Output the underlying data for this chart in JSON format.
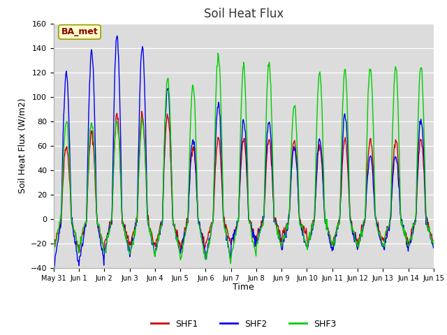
{
  "title": "Soil Heat Flux",
  "ylabel": "Soil Heat Flux (W/m2)",
  "xlabel": "Time",
  "ylim": [
    -40,
    160
  ],
  "yticks": [
    -40,
    -20,
    0,
    20,
    40,
    60,
    80,
    100,
    120,
    140,
    160
  ],
  "colors": {
    "SHF1": "#cc0000",
    "SHF2": "#0000ee",
    "SHF3": "#00cc00"
  },
  "fig_bg_color": "#ffffff",
  "plot_bg_color": "#dcdcdc",
  "annotation_text": "BA_met",
  "annotation_bg": "#ffffcc",
  "annotation_border": "#999900",
  "num_days": 15,
  "points_per_day": 48,
  "xticklabels": [
    "May 31",
    "Jun 1",
    "Jun 2",
    "Jun 3",
    "Jun 4",
    "Jun 5",
    "Jun 6",
    "Jun 7",
    "Jun 8",
    "Jun 9",
    "Jun 10",
    "Jun 11",
    "Jun 12",
    "Jun 13",
    "Jun 14",
    "Jun 15"
  ]
}
